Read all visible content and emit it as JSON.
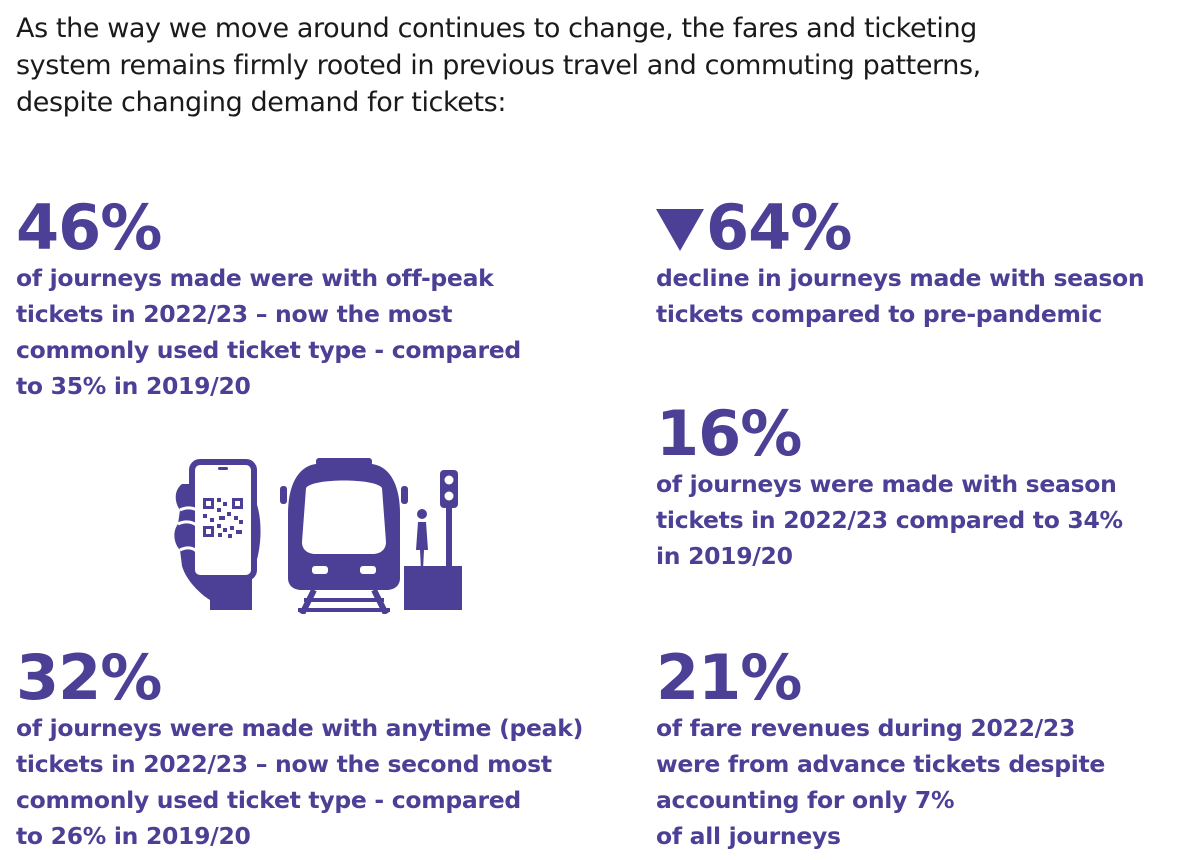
{
  "intro": {
    "lines": [
      "As the way we move around continues to change, the fares and ticketing",
      "system remains firmly rooted in previous travel and commuting patterns,",
      "despite changing demand for tickets:"
    ]
  },
  "stats": [
    {
      "value": "46%",
      "lines": [
        "of journeys made were with off-peak",
        "tickets in 2022/23 – now the most",
        "commonly used ticket type - compared",
        "to 35% in 2019/20"
      ]
    },
    {
      "value": "64%",
      "icon": "down-triangle-icon",
      "lines": [
        "decline in journeys made with season",
        "tickets compared to pre-pandemic"
      ]
    },
    {
      "value": "16%",
      "lines": [
        "of journeys were made with season",
        "tickets in 2022/23 compared to 34%",
        "in 2019/20"
      ]
    },
    {
      "value": "32%",
      "lines": [
        "of journeys were made with anytime (peak)",
        "tickets in 2022/23 – now the second most",
        "commonly used ticket type - compared",
        "to 26% in 2019/20"
      ]
    },
    {
      "value": "21%",
      "lines": [
        "of fare revenues during 2022/23",
        "were from advance tickets despite",
        "accounting for only 7%",
        "of all journeys"
      ]
    }
  ],
  "illustration": {
    "icons": [
      "phone-qr-ticket-icon",
      "train-icon",
      "platform-passenger-icon",
      "signal-icon"
    ]
  },
  "colors": {
    "accent": "#4b3f96",
    "text": "#1a1a1a"
  }
}
